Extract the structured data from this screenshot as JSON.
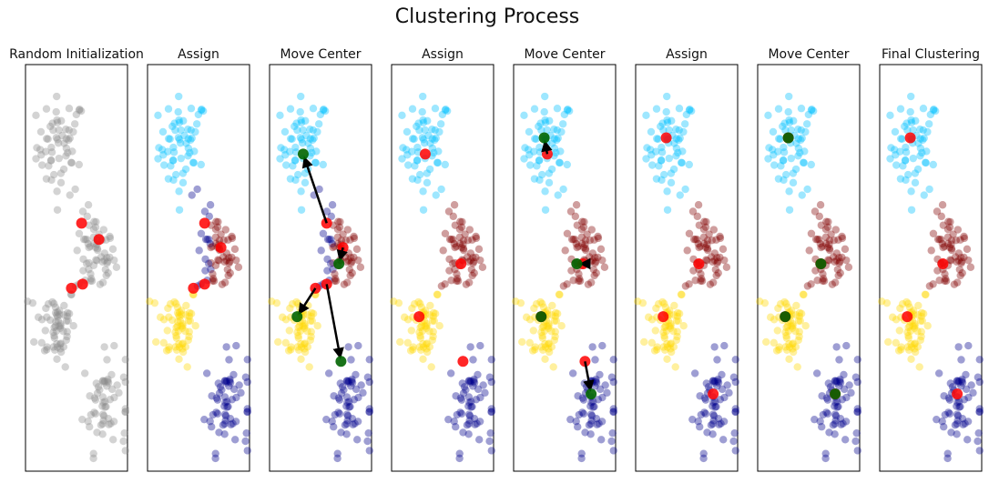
{
  "title": "Clustering Process",
  "chart_data": {
    "type": "scatter",
    "xlim": [
      0,
      1
    ],
    "ylim": [
      0,
      1
    ],
    "grid": false,
    "colors": {
      "unassigned": "#8c8c8c",
      "clusters": [
        "#00bfff",
        "#800000",
        "#ffd700",
        "#00008b"
      ],
      "old_centroid": "#ff0000",
      "new_centroid": "#006400",
      "arrow": "#000000"
    },
    "cluster_centers": [
      [
        0.35,
        0.8
      ],
      [
        0.68,
        0.53
      ],
      [
        0.3,
        0.36
      ],
      [
        0.78,
        0.17
      ]
    ],
    "cluster_spread": [
      [
        0.12,
        0.06
      ],
      [
        0.1,
        0.05
      ],
      [
        0.1,
        0.05
      ],
      [
        0.11,
        0.06
      ]
    ],
    "points_per_cluster": 60,
    "panels": [
      {
        "title": "Random Initialization",
        "mode": "unassigned",
        "old_centroids": [
          [
            0.55,
            0.61
          ],
          [
            0.72,
            0.57
          ],
          [
            0.45,
            0.45
          ],
          [
            0.56,
            0.46
          ]
        ]
      },
      {
        "title": "Assign",
        "mode": "assign1",
        "old_centroids": [
          [
            0.56,
            0.61
          ],
          [
            0.72,
            0.55
          ],
          [
            0.45,
            0.45
          ],
          [
            0.56,
            0.46
          ]
        ]
      },
      {
        "title": "Move Center",
        "mode": "assign1",
        "old_centroids": [
          [
            0.56,
            0.61
          ],
          [
            0.72,
            0.55
          ],
          [
            0.45,
            0.45
          ],
          [
            0.56,
            0.46
          ]
        ],
        "new_centroids": [
          [
            0.33,
            0.78
          ],
          [
            0.68,
            0.51
          ],
          [
            0.27,
            0.38
          ],
          [
            0.7,
            0.27
          ]
        ]
      },
      {
        "title": "Assign",
        "mode": "final",
        "old_centroids": [
          [
            0.33,
            0.78
          ],
          [
            0.68,
            0.51
          ],
          [
            0.27,
            0.38
          ],
          [
            0.7,
            0.27
          ]
        ]
      },
      {
        "title": "Move Center",
        "mode": "final",
        "old_centroids": [
          [
            0.33,
            0.78
          ],
          [
            0.68,
            0.51
          ],
          [
            0.27,
            0.38
          ],
          [
            0.7,
            0.27
          ]
        ],
        "new_centroids": [
          [
            0.3,
            0.82
          ],
          [
            0.62,
            0.51
          ],
          [
            0.27,
            0.38
          ],
          [
            0.76,
            0.19
          ]
        ]
      },
      {
        "title": "Assign",
        "mode": "final",
        "old_centroids": [
          [
            0.3,
            0.82
          ],
          [
            0.62,
            0.51
          ],
          [
            0.27,
            0.38
          ],
          [
            0.76,
            0.19
          ]
        ]
      },
      {
        "title": "Move Center",
        "mode": "final",
        "old_centroids": [
          [
            0.3,
            0.82
          ],
          [
            0.62,
            0.51
          ],
          [
            0.27,
            0.38
          ],
          [
            0.76,
            0.19
          ]
        ],
        "new_centroids": [
          [
            0.3,
            0.82
          ],
          [
            0.62,
            0.51
          ],
          [
            0.27,
            0.38
          ],
          [
            0.76,
            0.19
          ]
        ]
      },
      {
        "title": "Final Clustering",
        "mode": "final",
        "old_centroids": [
          [
            0.3,
            0.82
          ],
          [
            0.62,
            0.51
          ],
          [
            0.27,
            0.38
          ],
          [
            0.76,
            0.19
          ]
        ]
      }
    ]
  }
}
